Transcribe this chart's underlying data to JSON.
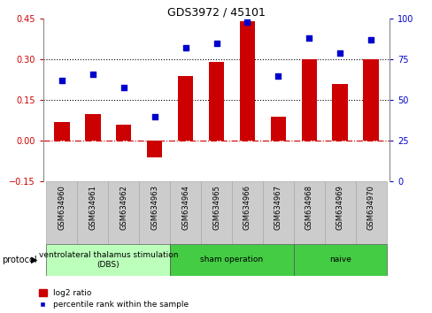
{
  "title": "GDS3972 / 45101",
  "samples": [
    "GSM634960",
    "GSM634961",
    "GSM634962",
    "GSM634963",
    "GSM634964",
    "GSM634965",
    "GSM634966",
    "GSM634967",
    "GSM634968",
    "GSM634969",
    "GSM634970"
  ],
  "log2_ratio": [
    0.07,
    0.1,
    0.06,
    -0.06,
    0.24,
    0.29,
    0.44,
    0.09,
    0.3,
    0.21,
    0.3
  ],
  "percentile_rank": [
    62,
    66,
    58,
    40,
    82,
    85,
    98,
    65,
    88,
    79,
    87
  ],
  "groups": [
    {
      "label": "ventrolateral thalamus stimulation\n(DBS)",
      "start": 0,
      "end": 3,
      "color": "#bbffbb"
    },
    {
      "label": "sham operation",
      "start": 4,
      "end": 7,
      "color": "#44cc44"
    },
    {
      "label": "naive",
      "start": 8,
      "end": 10,
      "color": "#44cc44"
    }
  ],
  "bar_color": "#cc0000",
  "dot_color": "#0000cc",
  "ylim_left": [
    -0.15,
    0.45
  ],
  "ylim_right": [
    0,
    100
  ],
  "yticks_left": [
    -0.15,
    0,
    0.15,
    0.3,
    0.45
  ],
  "yticks_right": [
    0,
    25,
    50,
    75,
    100
  ],
  "hlines": [
    0.15,
    0.3
  ],
  "zero_line_color": "#cc0000",
  "legend_bar_label": "log2 ratio",
  "legend_dot_label": "percentile rank within the sample",
  "bar_width": 0.5,
  "sample_label_color": "#333333",
  "sample_bg_color": "#cccccc",
  "protocol_label": "protocol"
}
